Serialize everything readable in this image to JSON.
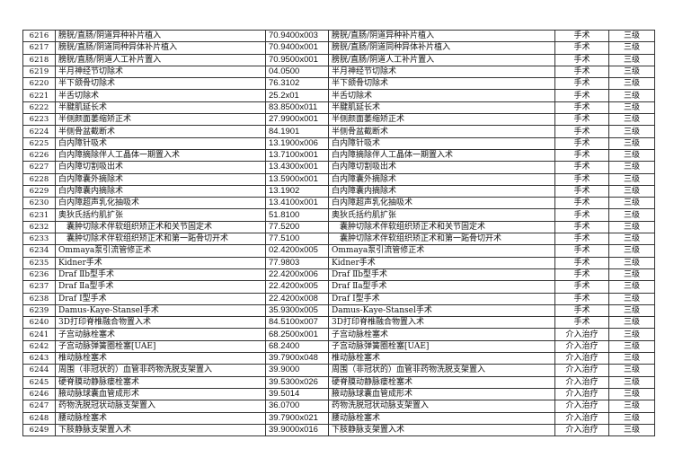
{
  "rows": [
    {
      "no": "6216",
      "name": "膀胱/直肠/阴道异种补片植入",
      "code": "70.9400x003",
      "name2": "膀胱/直肠/阴道异种补片植入",
      "type": "手术",
      "level": "三级"
    },
    {
      "no": "6217",
      "name": "膀胱/直肠/阴道同种异体补片植入",
      "code": "70.9400x001",
      "name2": "膀胱/直肠/阴道同种异体补片植入",
      "type": "手术",
      "level": "三级"
    },
    {
      "no": "6218",
      "name": "膀胱/直肠/阴道人工补片置入",
      "code": "70.9500x001",
      "name2": "膀胱/直肠/阴道人工补片置入",
      "type": "手术",
      "level": "三级"
    },
    {
      "no": "6219",
      "name": "半月神经节切除术",
      "code": "04.0500",
      "name2": "半月神经节切除术",
      "type": "手术",
      "level": "三级"
    },
    {
      "no": "6220",
      "name": "半下颌骨切除术",
      "code": "76.3102",
      "name2": "半下颌骨切除术",
      "type": "手术",
      "level": "三级"
    },
    {
      "no": "6221",
      "name": "半舌切除术",
      "code": "25.2x01",
      "name2": "半舌切除术",
      "type": "手术",
      "level": "三级"
    },
    {
      "no": "6222",
      "name": "半腱肌延长术",
      "code": "83.8500x011",
      "name2": "半腱肌延长术",
      "type": "手术",
      "level": "三级"
    },
    {
      "no": "6223",
      "name": "半侧颜面萎缩矫正术",
      "code": "27.9900x001",
      "name2": "半侧颜面萎缩矫正术",
      "type": "手术",
      "level": "三级"
    },
    {
      "no": "6224",
      "name": "半侧骨盆截断术",
      "code": "84.1901",
      "name2": "半侧骨盆截断术",
      "type": "手术",
      "level": "三级"
    },
    {
      "no": "6225",
      "name": "白内障针吸术",
      "code": "13.1900x006",
      "name2": "白内障针吸术",
      "type": "手术",
      "level": "三级"
    },
    {
      "no": "6226",
      "name": "白内障摘除伴人工晶体一期置入术",
      "code": "13.7100x001",
      "name2": "白内障摘除伴人工晶体一期置入术",
      "type": "手术",
      "level": "三级"
    },
    {
      "no": "6227",
      "name": "白内障切割吸出术",
      "code": "13.4300x001",
      "name2": "白内障切割吸出术",
      "type": "手术",
      "level": "三级"
    },
    {
      "no": "6228",
      "name": "白内障囊外摘除术",
      "code": "13.5900x001",
      "name2": "白内障囊外摘除术",
      "type": "手术",
      "level": "三级"
    },
    {
      "no": "6229",
      "name": "白内障囊内摘除术",
      "code": "13.1902",
      "name2": "白内障囊内摘除术",
      "type": "手术",
      "level": "三级"
    },
    {
      "no": "6230",
      "name": "白内障超声乳化抽吸术",
      "code": "13.4100x001",
      "name2": "白内障超声乳化抽吸术",
      "type": "手术",
      "level": "三级"
    },
    {
      "no": "6231",
      "name": "奥狄氏括约肌扩张",
      "code": "51.8100",
      "name2": "奥狄氏括约肌扩张",
      "type": "手术",
      "level": "三级"
    },
    {
      "no": "6232",
      "name": "囊肿切除术伴软组织矫正术和关节固定术",
      "code": "77.5200",
      "name2": "囊肿切除术伴软组织矫正术和关节固定术",
      "type": "手术",
      "level": "三级",
      "indent": true
    },
    {
      "no": "6233",
      "name": "囊肿切除术伴软组织矫正术和第一跖骨切开术",
      "code": "77.5100",
      "name2": "囊肿切除术伴软组织矫正术和第一跖骨切开术",
      "type": "手术",
      "level": "三级",
      "indent": true
    },
    {
      "no": "6234",
      "name": "Ommaya泵引流管修正术",
      "code": "02.4200x005",
      "name2": "Ommaya泵引流管修正术",
      "type": "手术",
      "level": "三级"
    },
    {
      "no": "6235",
      "name": "Kidner手术",
      "code": "77.9803",
      "name2": "Kidner手术",
      "type": "手术",
      "level": "三级"
    },
    {
      "no": "6236",
      "name": "Draf Ⅱb型手术",
      "code": "22.4200x006",
      "name2": "Draf Ⅱb型手术",
      "type": "手术",
      "level": "三级"
    },
    {
      "no": "6237",
      "name": "Draf Ⅱa型手术",
      "code": "22.4200x005",
      "name2": "Draf Ⅱa型手术",
      "type": "手术",
      "level": "三级"
    },
    {
      "no": "6238",
      "name": "Draf Ⅰ型手术",
      "code": "22.4200x008",
      "name2": "Draf Ⅰ型手术",
      "type": "手术",
      "level": "三级"
    },
    {
      "no": "6239",
      "name": "Damus-Kaye-Stansel手术",
      "code": "35.9300x005",
      "name2": "Damus-Kaye-Stansel手术",
      "type": "手术",
      "level": "三级"
    },
    {
      "no": "6240",
      "name": "3D打印脊椎融合物置入术",
      "code": "84.5100x007",
      "name2": "3D打印脊椎融合物置入术",
      "type": "手术",
      "level": "三级"
    },
    {
      "no": "6241",
      "name": "子宫动脉栓塞术",
      "code": "68.2500x001",
      "name2": "子宫动脉栓塞术",
      "type": "介入治疗",
      "level": "三级"
    },
    {
      "no": "6242",
      "name": "子宫动脉弹簧圈栓塞[UAE]",
      "code": "68.2400",
      "name2": "子宫动脉弹簧圈栓塞[UAE]",
      "type": "介入治疗",
      "level": "三级"
    },
    {
      "no": "6243",
      "name": "椎动脉栓塞术",
      "code": "39.7900x048",
      "name2": "椎动脉栓塞术",
      "type": "介入治疗",
      "level": "三级"
    },
    {
      "no": "6244",
      "name": "周围（非冠状的）血管非药物洗脱支架置入",
      "code": "39.9000",
      "name2": "周围（非冠状的）血管非药物洗脱支架置入",
      "type": "介入治疗",
      "level": "三级"
    },
    {
      "no": "6245",
      "name": "硬脊膜动静脉瘘栓塞术",
      "code": "39.5300x026",
      "name2": "硬脊膜动静脉瘘栓塞术",
      "type": "介入治疗",
      "level": "三级"
    },
    {
      "no": "6246",
      "name": "腋动脉球囊血管成形术",
      "code": "39.5014",
      "name2": "腋动脉球囊血管成形术",
      "type": "介入治疗",
      "level": "三级"
    },
    {
      "no": "6247",
      "name": "药物洗脱冠状动脉支架置入",
      "code": "36.0700",
      "name2": "药物洗脱冠状动脉支架置入",
      "type": "介入治疗",
      "level": "三级"
    },
    {
      "no": "6248",
      "name": "腰动脉栓塞术",
      "code": "39.7900x021",
      "name2": "腰动脉栓塞术",
      "type": "介入治疗",
      "level": "三级"
    },
    {
      "no": "6249",
      "name": "下肢静脉支架置入术",
      "code": "39.9000x016",
      "name2": "下肢静脉支架置入术",
      "type": "介入治疗",
      "level": "三级"
    }
  ]
}
